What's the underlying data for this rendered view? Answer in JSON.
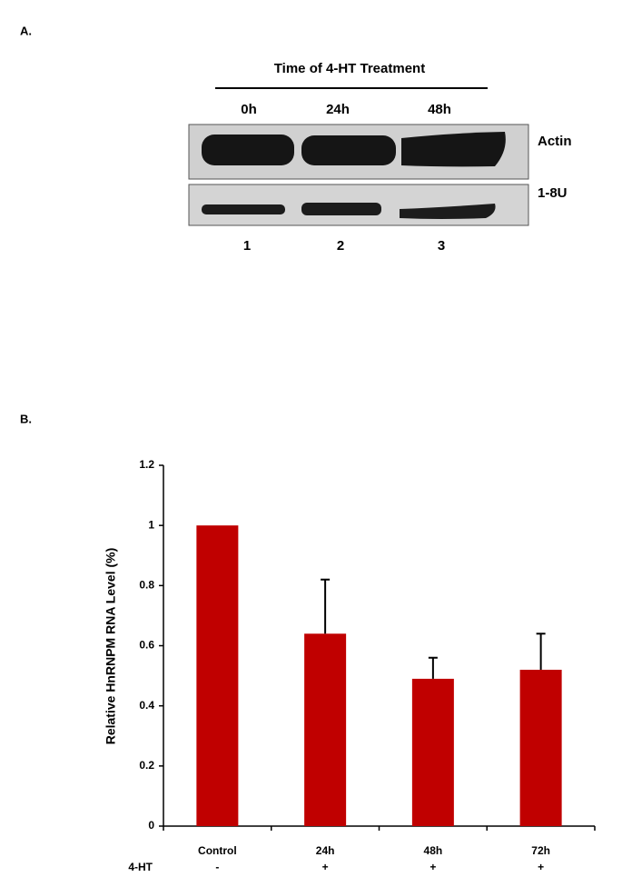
{
  "panel_a": {
    "label": "A.",
    "header": "Time of 4-HT Treatment",
    "lanes": [
      "0h",
      "24h",
      "48h"
    ],
    "rows": [
      "Actin",
      "1-8U"
    ],
    "lane_numbers": [
      "1",
      "2",
      "3"
    ]
  },
  "chart_data": {
    "type": "bar",
    "panel_label": "B.",
    "y_label": "Relative HnRNPM RNA Level (%)",
    "categories": [
      "Control",
      "24h",
      "48h",
      "72h"
    ],
    "treatment_label": "4-HT",
    "treatment": [
      "-",
      "+",
      "+",
      "+"
    ],
    "values": [
      1.0,
      0.64,
      0.49,
      0.52
    ],
    "errors": [
      null,
      0.18,
      0.07,
      0.12
    ],
    "color": "#c00000",
    "ylim": [
      0,
      1.2
    ],
    "yticks": [
      0,
      0.2,
      0.4,
      0.6,
      0.8,
      1,
      1.2
    ]
  }
}
